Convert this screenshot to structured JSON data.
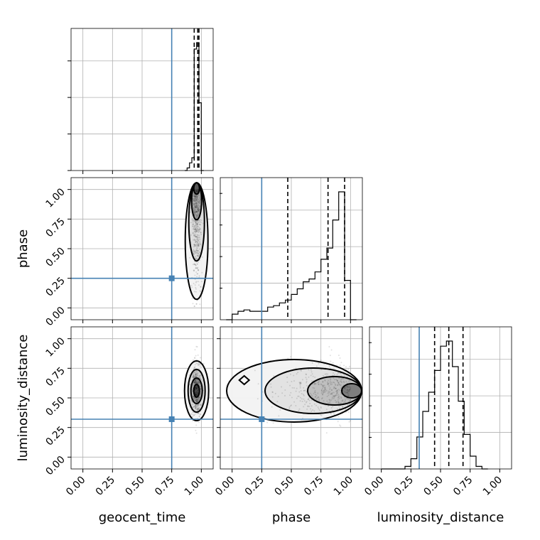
{
  "chart_data": {
    "type": "corner",
    "parameters": [
      "geocent_time",
      "phase",
      "luminosity_distance"
    ],
    "axis_labels": {
      "x": [
        "geocent_time",
        "phase",
        "luminosity_distance"
      ],
      "y": [
        "phase",
        "luminosity_distance"
      ]
    },
    "tick_values": [
      0.0,
      0.25,
      0.5,
      0.75,
      1.0
    ],
    "tick_labels": [
      "0.00",
      "0.25",
      "0.50",
      "0.75",
      "1.00"
    ],
    "xlim": [
      -0.1,
      1.1
    ],
    "ylim": [
      -0.1,
      1.1
    ],
    "grid": true,
    "truth_color": "#4682b4",
    "truths": {
      "geocent_time": 0.75,
      "phase": 0.25,
      "luminosity_distance": 0.32
    },
    "quantiles": {
      "geocent_time": [
        0.94,
        0.97,
        0.98
      ],
      "phase": [
        0.47,
        0.81,
        0.95
      ],
      "luminosity_distance": [
        0.45,
        0.57,
        0.69
      ]
    },
    "histograms": {
      "geocent_time": {
        "edges": [
          0.86,
          0.88,
          0.9,
          0.92,
          0.94,
          0.96,
          0.98,
          1.0,
          1.02
        ],
        "counts": [
          0,
          0.02,
          0.06,
          0.1,
          0.95,
          1.0,
          0.53,
          0
        ]
      },
      "phase": {
        "edges": [
          -0.05,
          0.0,
          0.05,
          0.1,
          0.15,
          0.2,
          0.25,
          0.3,
          0.35,
          0.4,
          0.45,
          0.5,
          0.55,
          0.6,
          0.65,
          0.7,
          0.75,
          0.8,
          0.85,
          0.9,
          0.95,
          1.0,
          1.05
        ],
        "counts": [
          0,
          0.04,
          0.06,
          0.07,
          0.06,
          0.06,
          0.06,
          0.09,
          0.1,
          0.12,
          0.14,
          0.18,
          0.22,
          0.27,
          0.29,
          0.34,
          0.43,
          0.51,
          0.71,
          0.91,
          0.28,
          0.0
        ]
      },
      "luminosity_distance": {
        "edges": [
          0.0,
          0.2,
          0.25,
          0.3,
          0.35,
          0.4,
          0.45,
          0.5,
          0.55,
          0.6,
          0.65,
          0.7,
          0.75,
          0.8,
          0.85,
          0.9
        ],
        "counts": [
          0,
          0.02,
          0.08,
          0.25,
          0.45,
          0.6,
          0.77,
          0.96,
          1.0,
          0.8,
          0.53,
          0.27,
          0.1,
          0.02,
          0
        ]
      }
    },
    "panels_2d": [
      {
        "x": "geocent_time",
        "y": "phase",
        "center": [
          0.96,
          0.97
        ],
        "spread": [
          0.02,
          0.28
        ]
      },
      {
        "x": "geocent_time",
        "y": "luminosity_distance",
        "center": [
          0.96,
          0.56
        ],
        "spread": [
          0.02,
          0.12
        ]
      },
      {
        "x": "phase",
        "y": "luminosity_distance",
        "center": [
          0.95,
          0.56
        ],
        "spread": [
          0.28,
          0.12
        ]
      }
    ]
  }
}
